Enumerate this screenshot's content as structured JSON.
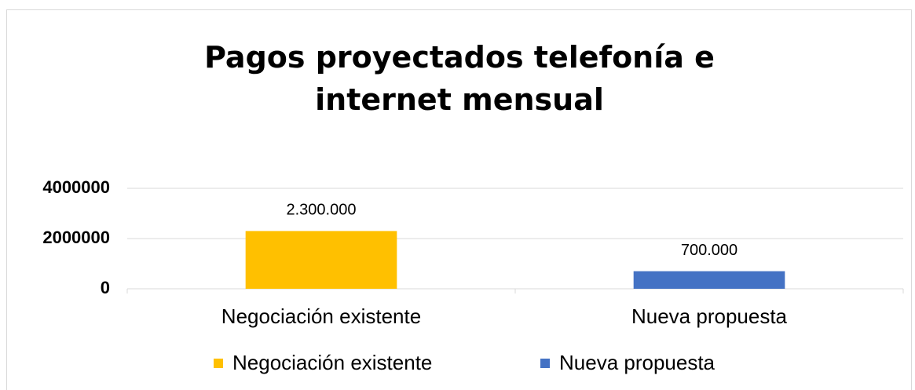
{
  "chart_data": {
    "type": "bar",
    "title": "Pagos proyectados telefonía e internet mensual",
    "categories": [
      "Negociación existente",
      "Nueva propuesta"
    ],
    "values": [
      2300000,
      700000
    ],
    "value_labels": [
      "2.300.000",
      "700.000"
    ],
    "colors": [
      "#ffc000",
      "#4472c4"
    ],
    "ylim": [
      0,
      4000000
    ],
    "yticks": [
      0,
      2000000,
      4000000
    ],
    "grid": true,
    "legend": "bottom"
  }
}
